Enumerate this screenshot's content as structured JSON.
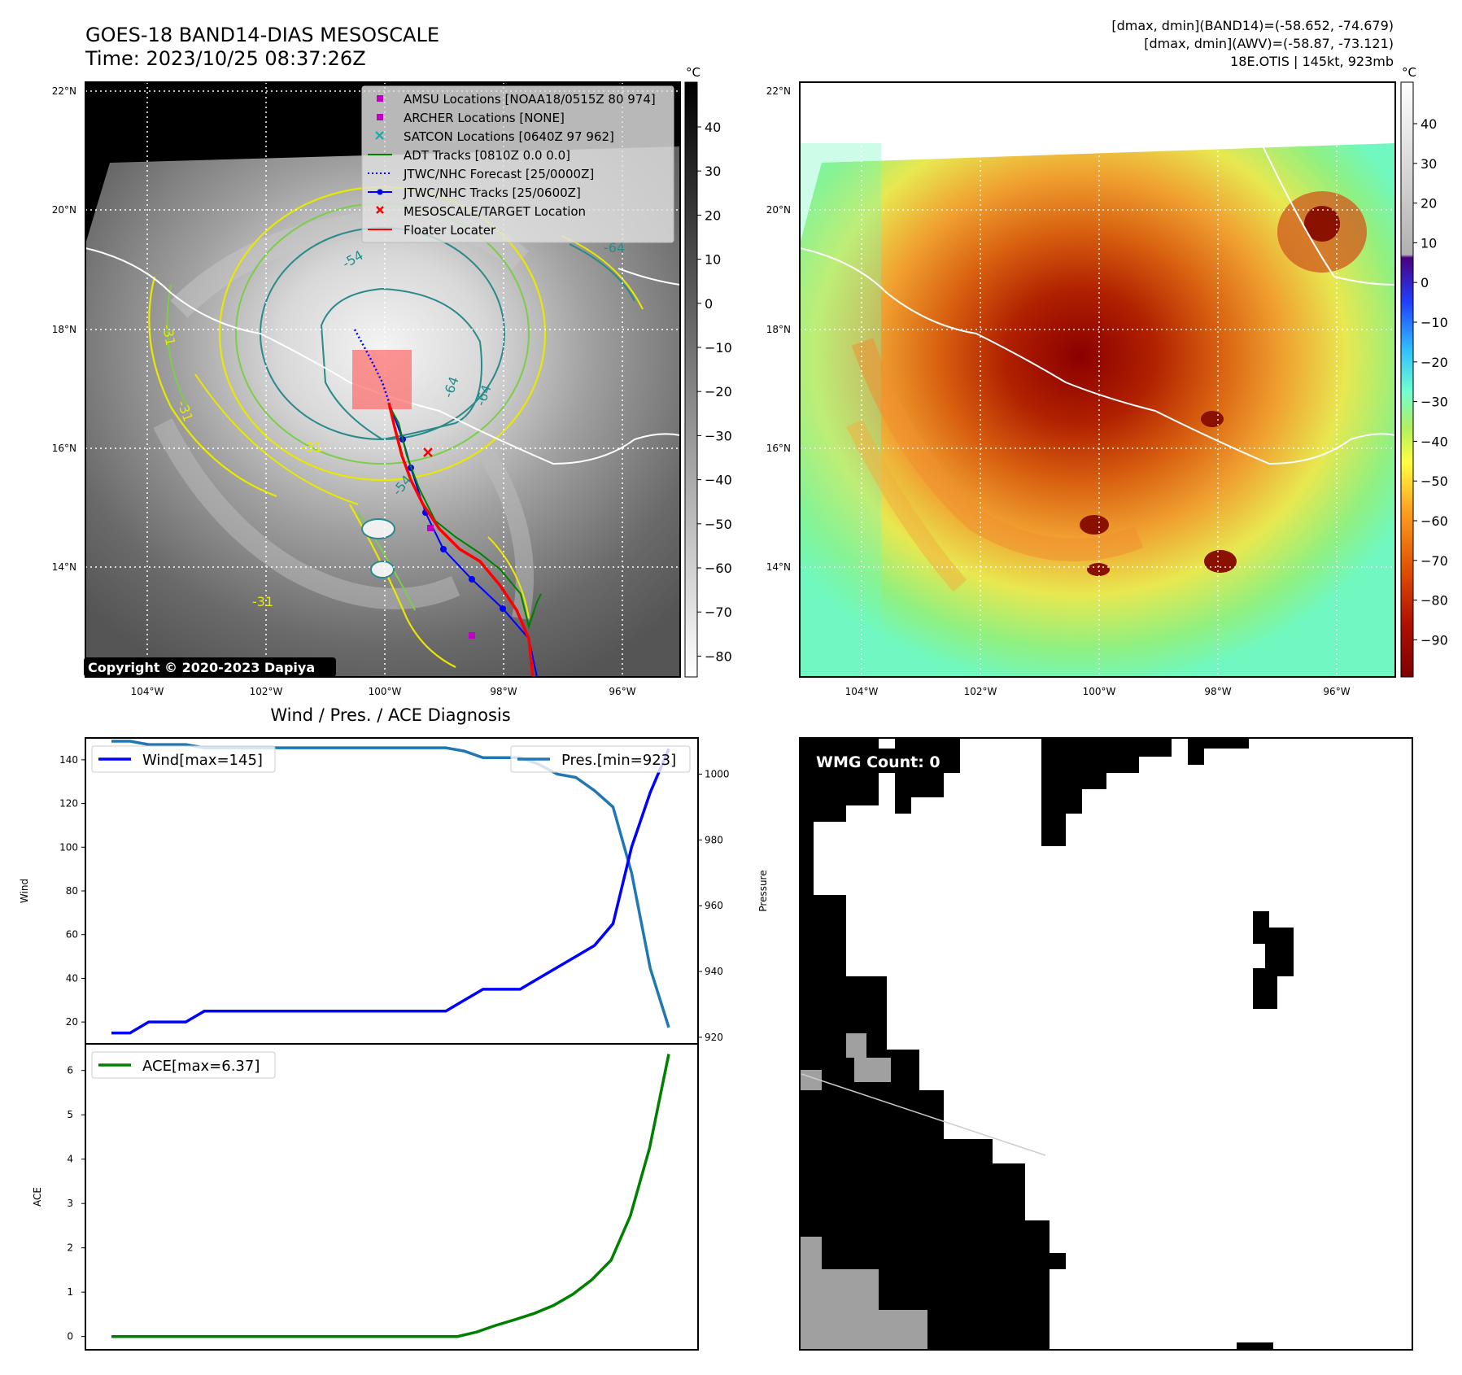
{
  "header": {
    "title_line1": "GOES-18 BAND14-DIAS MESOSCALE",
    "title_line2": "Time: 2023/10/25 08:37:26Z",
    "stats_line1": "[dmax, dmin](BAND14)=(-58.652, -74.679)",
    "stats_line2": "[dmax, dmin](AWV)=(-58.87, -73.121)",
    "stats_line3": "18E.OTIS | 145kt, 923mb"
  },
  "map": {
    "lon_labels": [
      "104°W",
      "102°W",
      "100°W",
      "98°W",
      "96°W"
    ],
    "lat_labels": [
      "22°N",
      "20°N",
      "18°N",
      "16°N",
      "14°N"
    ],
    "copyright": "Copyright © 2020-2023 Dapiya",
    "contour_labels": [
      "-54",
      "-64",
      "-64",
      "-64",
      "-54",
      "-31",
      "-31",
      "-31",
      "-31"
    ],
    "colors": {
      "contour_yellow": "#e8e800",
      "contour_green": "#7ccd4a",
      "contour_teal": "#2a8a8a"
    }
  },
  "colorbar_left": {
    "unit": "°C",
    "ticks": [
      "40",
      "30",
      "20",
      "10",
      "0",
      "−10",
      "−20",
      "−30",
      "−40",
      "−50",
      "−60",
      "−70",
      "−80"
    ]
  },
  "colorbar_right": {
    "unit": "°C",
    "ticks": [
      "40",
      "30",
      "20",
      "10",
      "0",
      "−10",
      "−20",
      "−30",
      "−40",
      "−50",
      "−60",
      "−70",
      "−80",
      "−90"
    ]
  },
  "legend": {
    "items": [
      {
        "label": "AMSU Locations [NOAA18/0515Z 80 974]",
        "color": "#c000c0",
        "marker": "square"
      },
      {
        "label": "ARCHER Locations [NONE]",
        "color": "#c000c0",
        "marker": "square"
      },
      {
        "label": "SATCON Locations [0640Z 97 962]",
        "color": "#00b0b0",
        "marker": "x"
      },
      {
        "label": "ADT Tracks [0810Z 0.0 0.0]",
        "color": "#008000",
        "marker": "line"
      },
      {
        "label": "JTWC/NHC Forecast [25/0000Z]",
        "color": "#0000ff",
        "marker": "dotted"
      },
      {
        "label": "JTWC/NHC Tracks [25/0600Z]",
        "color": "#0000ff",
        "marker": "line-dot"
      },
      {
        "label": "MESOSCALE/TARGET Location",
        "color": "#ff0000",
        "marker": "x"
      },
      {
        "label": "Floater Locater",
        "color": "#ff0000",
        "marker": "line"
      }
    ]
  },
  "wmg": {
    "label": "WMG Count: 0"
  },
  "chart_data": [
    {
      "type": "line",
      "title": "Wind / Pres. / ACE Diagnosis",
      "ylabel": "Wind",
      "ylabel_right": "Pressure",
      "ylim": [
        10,
        150
      ],
      "ylim_right": [
        918,
        1011
      ],
      "yticks": [
        20,
        40,
        60,
        80,
        100,
        120,
        140
      ],
      "yticks_right": [
        920,
        940,
        960,
        980,
        1000
      ],
      "series": [
        {
          "name": "Wind[max=145]",
          "axis": "left",
          "color": "#0000ff",
          "values": [
            15,
            15,
            20,
            20,
            20,
            25,
            25,
            25,
            25,
            25,
            25,
            25,
            25,
            25,
            25,
            25,
            25,
            25,
            25,
            30,
            35,
            35,
            35,
            40,
            45,
            50,
            55,
            65,
            100,
            125,
            145
          ]
        },
        {
          "name": "Pres.[min=923]",
          "axis": "right",
          "color": "#1f77b4",
          "values": [
            1010,
            1010,
            1009,
            1009,
            1009,
            1008,
            1008,
            1008,
            1008,
            1008,
            1008,
            1008,
            1008,
            1008,
            1008,
            1008,
            1008,
            1008,
            1008,
            1007,
            1005,
            1005,
            1005,
            1003,
            1000,
            999,
            995,
            990,
            970,
            941,
            923
          ]
        }
      ]
    },
    {
      "type": "line",
      "ylabel": "ACE",
      "ylim": [
        -0.3,
        6.6
      ],
      "yticks": [
        0,
        1,
        2,
        3,
        4,
        5,
        6
      ],
      "series": [
        {
          "name": "ACE[max=6.37]",
          "color": "#008000",
          "values": [
            0,
            0,
            0,
            0,
            0,
            0,
            0,
            0,
            0,
            0,
            0,
            0,
            0,
            0,
            0,
            0,
            0,
            0,
            0,
            0.1,
            0.25,
            0.38,
            0.52,
            0.7,
            0.95,
            1.28,
            1.72,
            2.72,
            4.25,
            6.37
          ]
        }
      ]
    }
  ]
}
